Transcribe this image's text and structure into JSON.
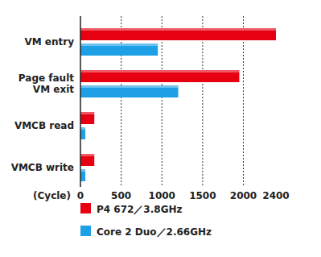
{
  "chart_data": {
    "type": "bar",
    "orientation": "horizontal",
    "categories": [
      "VM entry",
      "Page fault\nVM exit",
      "VMCB read",
      "VMCB write"
    ],
    "series": [
      {
        "name": "P4 672／3.8GHz",
        "color": "#e60012",
        "values": [
          2400,
          1950,
          170,
          170
        ]
      },
      {
        "name": "Core 2 Duo／2.66GHz",
        "color": "#1ea0e6",
        "values": [
          950,
          1200,
          60,
          60
        ]
      }
    ],
    "x_label": "(Cycle)",
    "xlim": [
      0,
      2400
    ],
    "xticks": [
      0,
      500,
      1000,
      1500,
      2000,
      2400
    ],
    "grid": true,
    "legend": "bottom"
  }
}
